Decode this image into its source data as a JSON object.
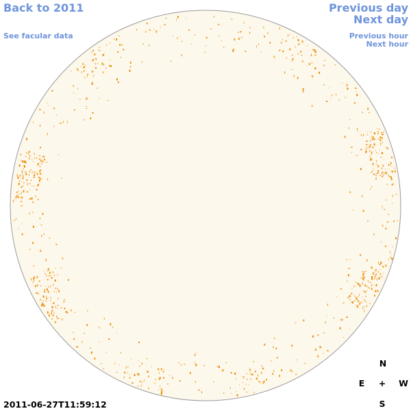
{
  "navigation": {
    "back": "Back to 2011",
    "facular": "See facular data",
    "previous_day": "Previous day",
    "next_day": "Next day",
    "previous_hour": "Previous hour",
    "next_hour": "Next hour"
  },
  "timestamp": "2011-06-27T11:59:12",
  "compass": {
    "north": "N",
    "east": "E",
    "center": "+",
    "west": "W",
    "south": "S"
  }
}
